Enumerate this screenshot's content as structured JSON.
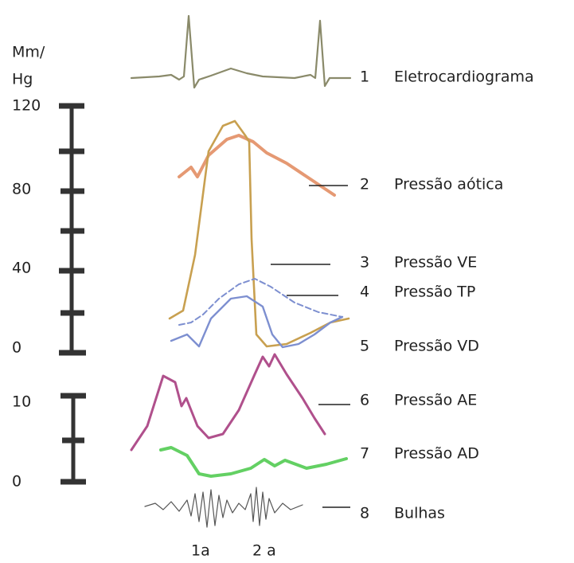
{
  "axis": {
    "unit": [
      "Mm/",
      "Hg"
    ],
    "upper_scale": [
      "120",
      "80",
      "40",
      "0"
    ],
    "lower_scale": [
      "10",
      "0"
    ]
  },
  "traces": [
    {
      "number": "1",
      "label": "Eletrocardiograma"
    },
    {
      "number": "2",
      "label": "Pressão aótica"
    },
    {
      "number": "3",
      "label": "Pressão VE"
    },
    {
      "number": "4",
      "label": "Pressão TP"
    },
    {
      "number": "5",
      "label": "Pressão VD"
    },
    {
      "number": "6",
      "label": "Pressão AE"
    },
    {
      "number": "7",
      "label": "Pressão AD"
    },
    {
      "number": "8",
      "label": "Bulhas"
    }
  ],
  "markers": [
    "1a",
    "2 a"
  ]
}
